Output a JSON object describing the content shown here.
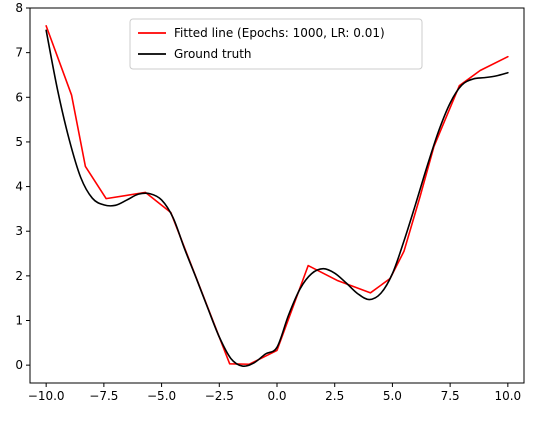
{
  "chart_data": {
    "type": "line",
    "title": "",
    "xlabel": "",
    "ylabel": "",
    "xlim": [
      -10.7,
      10.7
    ],
    "ylim": [
      -0.4,
      8.0
    ],
    "xticks": [
      -10.0,
      -7.5,
      -5.0,
      -2.5,
      0.0,
      2.5,
      5.0,
      7.5,
      10.0
    ],
    "xtick_labels": [
      "−10.0",
      "−7.5",
      "−5.0",
      "−2.5",
      "0.0",
      "2.5",
      "5.0",
      "7.5",
      "10.0"
    ],
    "yticks": [
      0,
      1,
      2,
      3,
      4,
      5,
      6,
      7,
      8
    ],
    "ytick_labels": [
      "0",
      "1",
      "2",
      "3",
      "4",
      "5",
      "6",
      "7",
      "8"
    ],
    "grid": false,
    "legend_position": "upper center",
    "series": [
      {
        "name": "Fitted line (Epochs: 1000, LR: 0.01)",
        "color": "#ff0000",
        "x": [
          -10.0,
          -8.9,
          -8.3,
          -7.4,
          -5.7,
          -4.6,
          -2.05,
          -1.2,
          0.0,
          1.35,
          2.6,
          4.05,
          4.9,
          5.5,
          6.2,
          6.8,
          7.9,
          8.8,
          10.0
        ],
        "y": [
          7.6,
          6.05,
          4.45,
          3.73,
          3.87,
          3.42,
          0.03,
          0.02,
          0.33,
          2.23,
          1.9,
          1.62,
          1.94,
          2.55,
          3.78,
          4.9,
          6.26,
          6.6,
          6.91
        ]
      },
      {
        "name": "Ground truth",
        "color": "#000000",
        "x": [
          -10.0,
          -9.5,
          -9.0,
          -8.5,
          -8.0,
          -7.5,
          -7.0,
          -6.5,
          -6.0,
          -5.5,
          -5.0,
          -4.5,
          -4.0,
          -3.5,
          -3.0,
          -2.5,
          -2.0,
          -1.5,
          -1.0,
          -0.5,
          0.0,
          0.5,
          1.0,
          1.5,
          2.0,
          2.5,
          3.0,
          3.5,
          4.0,
          4.5,
          5.0,
          5.5,
          6.0,
          6.5,
          7.0,
          7.5,
          8.0,
          8.5,
          9.0,
          9.5,
          10.0
        ],
        "y": [
          7.5,
          6.15,
          5.05,
          4.2,
          3.74,
          3.59,
          3.58,
          3.7,
          3.83,
          3.84,
          3.7,
          3.3,
          2.6,
          1.95,
          1.28,
          0.63,
          0.15,
          -0.02,
          0.05,
          0.25,
          0.4,
          1.12,
          1.71,
          2.05,
          2.16,
          2.06,
          1.84,
          1.6,
          1.47,
          1.61,
          2.05,
          2.78,
          3.6,
          4.45,
          5.24,
          5.87,
          6.27,
          6.41,
          6.44,
          6.48,
          6.55
        ]
      }
    ]
  }
}
